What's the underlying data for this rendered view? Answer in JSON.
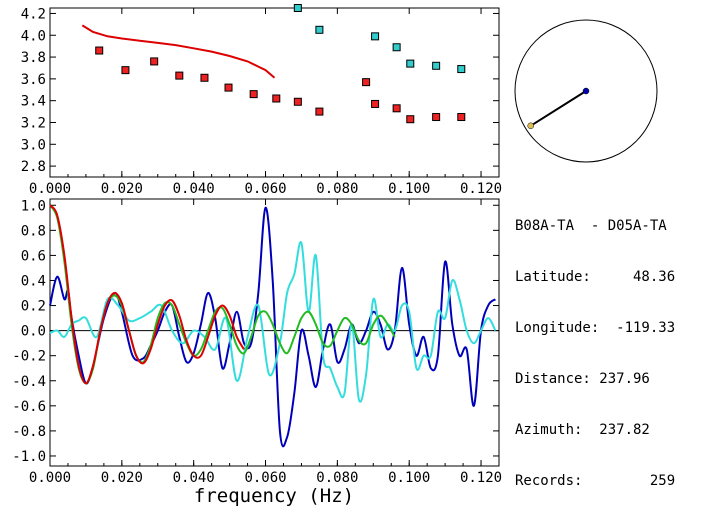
{
  "chart_data": [
    {
      "type": "scatter",
      "xlim": [
        0.0,
        0.125
      ],
      "ylim": [
        2.7,
        4.25
      ],
      "xticks": [
        "0.000",
        "0.020",
        "0.040",
        "0.060",
        "0.080",
        "0.100",
        "0.120"
      ],
      "xtick_values": [
        0.0,
        0.02,
        0.04,
        0.06,
        0.08,
        0.1,
        0.12
      ],
      "yticks": [
        "2.8",
        "3.0",
        "3.2",
        "3.4",
        "3.6",
        "3.8",
        "4.0",
        "4.2"
      ],
      "ytick_values": [
        2.8,
        3.0,
        3.2,
        3.4,
        3.6,
        3.8,
        4.0,
        4.2
      ],
      "red_points": {
        "color": "#ee2222",
        "x": [
          0.0137,
          0.021,
          0.029,
          0.036,
          0.043,
          0.0497,
          0.0567,
          0.063,
          0.069,
          0.075,
          0.088,
          0.0905,
          0.0965,
          0.1003,
          0.1075,
          0.1145
        ],
        "y": [
          3.86,
          3.68,
          3.76,
          3.63,
          3.61,
          3.52,
          3.46,
          3.42,
          3.39,
          3.3,
          3.57,
          3.37,
          3.33,
          3.23,
          3.25,
          3.25
        ]
      },
      "cyan_points": {
        "color": "#33cccc",
        "x": [
          0.069,
          0.075,
          0.0905,
          0.0965,
          0.1003,
          0.1075,
          0.1145
        ],
        "y": [
          4.25,
          4.05,
          3.99,
          3.89,
          3.74,
          3.72,
          3.69
        ]
      },
      "red_curve": {
        "color": "#dd0000",
        "x": [
          0.009,
          0.012,
          0.016,
          0.02,
          0.025,
          0.03,
          0.035,
          0.04,
          0.045,
          0.05,
          0.055,
          0.06,
          0.0625
        ],
        "y": [
          4.09,
          4.03,
          3.99,
          3.97,
          3.95,
          3.93,
          3.91,
          3.88,
          3.85,
          3.81,
          3.76,
          3.68,
          3.61
        ]
      }
    },
    {
      "type": "line",
      "xlabel": "frequency (Hz)",
      "xlim": [
        0.0,
        0.125
      ],
      "ylim": [
        -1.08,
        1.05
      ],
      "xticks": [
        "0.000",
        "0.020",
        "0.040",
        "0.060",
        "0.080",
        "0.100",
        "0.120"
      ],
      "xtick_values": [
        0.0,
        0.02,
        0.04,
        0.06,
        0.08,
        0.1,
        0.12
      ],
      "yticks": [
        "1.0",
        "0.8",
        "0.6",
        "0.4",
        "0.2",
        "0.0",
        "-0.2",
        "-0.4",
        "-0.6",
        "-0.8",
        "-1.0"
      ],
      "ytick_values": [
        1.0,
        0.8,
        0.6,
        0.4,
        0.2,
        0.0,
        -0.2,
        -0.4,
        -0.6,
        -0.8,
        -1.0
      ],
      "zero_line": true,
      "series": [
        {
          "color": "#0000bb",
          "x": [
            0.0,
            0.002,
            0.004,
            0.005,
            0.006,
            0.008,
            0.01,
            0.012,
            0.015,
            0.018,
            0.02,
            0.023,
            0.026,
            0.028,
            0.03,
            0.032,
            0.034,
            0.036,
            0.038,
            0.04,
            0.042,
            0.044,
            0.046,
            0.048,
            0.05,
            0.052,
            0.054,
            0.056,
            0.058,
            0.06,
            0.062,
            0.064,
            0.066,
            0.068,
            0.07,
            0.072,
            0.074,
            0.076,
            0.078,
            0.08,
            0.082,
            0.084,
            0.086,
            0.088,
            0.09,
            0.092,
            0.094,
            0.096,
            0.098,
            0.1,
            0.102,
            0.104,
            0.106,
            0.108,
            0.11,
            0.112,
            0.114,
            0.116,
            0.118,
            0.12,
            0.122,
            0.124
          ],
          "y": [
            0.2,
            0.43,
            0.25,
            0.32,
            0.1,
            -0.2,
            -0.42,
            -0.28,
            0.1,
            0.3,
            0.15,
            -0.2,
            -0.22,
            -0.12,
            0.0,
            0.15,
            0.2,
            -0.05,
            -0.25,
            -0.18,
            0.05,
            0.3,
            0.1,
            -0.3,
            -0.1,
            0.15,
            -0.1,
            -0.1,
            0.3,
            0.98,
            0.4,
            -0.8,
            -0.85,
            -0.5,
            0.0,
            -0.2,
            -0.45,
            -0.15,
            0.05,
            -0.25,
            -0.15,
            0.05,
            -0.1,
            0.0,
            0.15,
            0.05,
            -0.15,
            0.0,
            0.5,
            0.05,
            -0.2,
            -0.05,
            -0.3,
            -0.2,
            0.55,
            0.05,
            -0.2,
            -0.15,
            -0.6,
            0.0,
            0.2,
            0.25
          ]
        },
        {
          "color": "#33dddd",
          "x": [
            0.0,
            0.002,
            0.004,
            0.006,
            0.008,
            0.01,
            0.013,
            0.016,
            0.019,
            0.022,
            0.025,
            0.028,
            0.031,
            0.034,
            0.037,
            0.04,
            0.043,
            0.046,
            0.049,
            0.052,
            0.055,
            0.058,
            0.061,
            0.064,
            0.066,
            0.068,
            0.07,
            0.072,
            0.074,
            0.076,
            0.078,
            0.08,
            0.082,
            0.084,
            0.086,
            0.088,
            0.09,
            0.092,
            0.094,
            0.096,
            0.098,
            0.1,
            0.102,
            0.104,
            0.106,
            0.108,
            0.11,
            0.112,
            0.114,
            0.116,
            0.118,
            0.12,
            0.122,
            0.124
          ],
          "y": [
            -0.02,
            0.0,
            -0.05,
            0.05,
            0.08,
            0.1,
            -0.05,
            0.25,
            0.2,
            0.08,
            0.1,
            0.15,
            0.2,
            0.0,
            -0.1,
            0.0,
            -0.05,
            -0.15,
            0.1,
            -0.4,
            -0.05,
            0.2,
            -0.35,
            -0.1,
            0.3,
            0.45,
            0.7,
            0.15,
            0.6,
            -0.2,
            -0.3,
            -0.45,
            -0.5,
            0.05,
            -0.55,
            -0.35,
            0.25,
            -0.05,
            0.05,
            0.0,
            0.2,
            0.15,
            -0.3,
            -0.2,
            -0.2,
            0.15,
            0.1,
            0.4,
            0.25,
            0.0,
            -0.1,
            0.0,
            0.1,
            0.0
          ]
        },
        {
          "color": "#22bb22",
          "x": [
            0.0,
            0.002,
            0.004,
            0.006,
            0.008,
            0.01,
            0.012,
            0.014,
            0.016,
            0.018,
            0.02,
            0.022,
            0.024,
            0.026,
            0.028,
            0.03,
            0.032,
            0.034,
            0.036,
            0.038,
            0.04,
            0.042,
            0.044,
            0.046,
            0.048,
            0.05,
            0.052,
            0.054,
            0.056,
            0.058,
            0.06,
            0.062,
            0.064,
            0.066,
            0.068,
            0.07,
            0.072,
            0.074,
            0.076,
            0.078,
            0.08,
            0.082,
            0.084,
            0.086,
            0.088,
            0.09,
            0.092,
            0.094,
            0.096
          ],
          "y": [
            1.0,
            0.9,
            0.55,
            0.05,
            -0.3,
            -0.42,
            -0.3,
            0.0,
            0.22,
            0.28,
            0.2,
            0.0,
            -0.2,
            -0.25,
            -0.12,
            0.1,
            0.22,
            0.2,
            0.05,
            -0.1,
            -0.2,
            -0.15,
            0.0,
            0.15,
            0.18,
            0.05,
            -0.12,
            -0.18,
            -0.05,
            0.12,
            0.15,
            0.05,
            -0.1,
            -0.18,
            -0.05,
            0.1,
            0.15,
            0.05,
            -0.1,
            -0.12,
            0.0,
            0.1,
            0.05,
            -0.08,
            -0.1,
            0.05,
            0.12,
            0.05,
            -0.05
          ]
        },
        {
          "color": "#dd0000",
          "x": [
            0.0,
            0.002,
            0.004,
            0.006,
            0.008,
            0.01,
            0.012,
            0.014,
            0.016,
            0.018,
            0.02,
            0.022,
            0.024,
            0.026,
            0.028,
            0.03,
            0.032,
            0.034,
            0.036,
            0.038,
            0.04,
            0.042,
            0.044,
            0.046,
            0.048,
            0.05,
            0.052,
            0.054
          ],
          "y": [
            1.0,
            0.92,
            0.6,
            0.1,
            -0.28,
            -0.42,
            -0.28,
            0.0,
            0.22,
            0.3,
            0.22,
            0.0,
            -0.2,
            -0.26,
            -0.15,
            0.05,
            0.2,
            0.24,
            0.12,
            -0.08,
            -0.2,
            -0.2,
            -0.05,
            0.12,
            0.2,
            0.12,
            -0.05,
            -0.15
          ]
        }
      ]
    }
  ],
  "azimuth_dial": {
    "azimuth_deg": 237.82,
    "line_length_fraction": 0.92,
    "line_color": "#000000",
    "center_dot_color": "#0000aa",
    "end_dot_color": "#ddbb55"
  },
  "info": {
    "pair": "B08A-TA  - D05A-TA",
    "latitude": "Latitude:     48.36",
    "longitude": "Longitude:  -119.33",
    "distance": "Distance: 237.96",
    "azimuth": "Azimuth:  237.82",
    "records": "Records:        259"
  }
}
